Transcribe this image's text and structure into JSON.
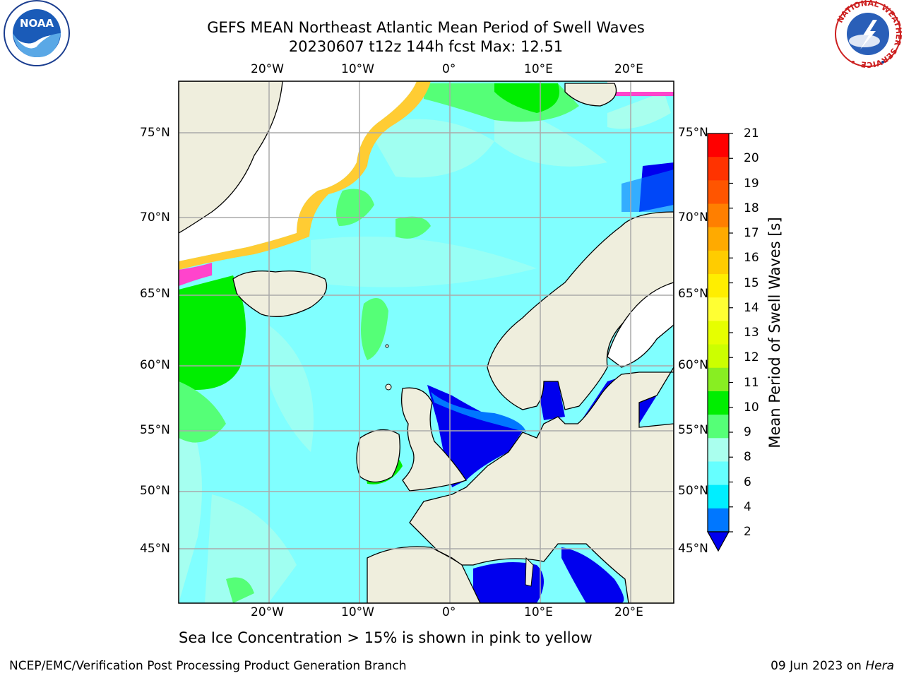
{
  "title": {
    "line1": "GEFS MEAN Northeast Atlantic Mean Period of Swell Waves",
    "line2": "20230607 t12z 144h fcst   Max: 12.51"
  },
  "logos": {
    "left": "NOAA",
    "right_ring_text": "NATIONAL WEATHER SERVICE"
  },
  "map": {
    "lon_labels": [
      "20°W",
      "10°W",
      "0°",
      "10°E",
      "20°E"
    ],
    "lat_labels": [
      "75°N",
      "70°N",
      "65°N",
      "60°N",
      "55°N",
      "50°N",
      "45°N"
    ],
    "land_color": "#efeedd",
    "ocean_color": "#80ffff"
  },
  "colorbar": {
    "title": "Mean Period of Swell Waves [s]",
    "ticks": [
      "21",
      "20",
      "19",
      "18",
      "17",
      "16",
      "15",
      "14",
      "13",
      "12",
      "11",
      "10",
      "9",
      "8",
      "6",
      "4",
      "2"
    ],
    "colors": [
      "#ff0000",
      "#ff3300",
      "#ff5500",
      "#ff7f00",
      "#ffaa00",
      "#ffcc00",
      "#ffee00",
      "#ffff33",
      "#e6ff00",
      "#ccff00",
      "#88ee22",
      "#00ee00",
      "#55ff77",
      "#aaffee",
      "#66ffff",
      "#00eeff",
      "#0077ff"
    ],
    "arrow_color": "#0000ee"
  },
  "note": "Sea Ice Concentration > 15% is shown in pink to yellow",
  "footer": {
    "left": "NCEP/EMC/Verification Post Processing Product Generation Branch",
    "right_date": "09 Jun 2023 on ",
    "right_host": "Hera"
  }
}
